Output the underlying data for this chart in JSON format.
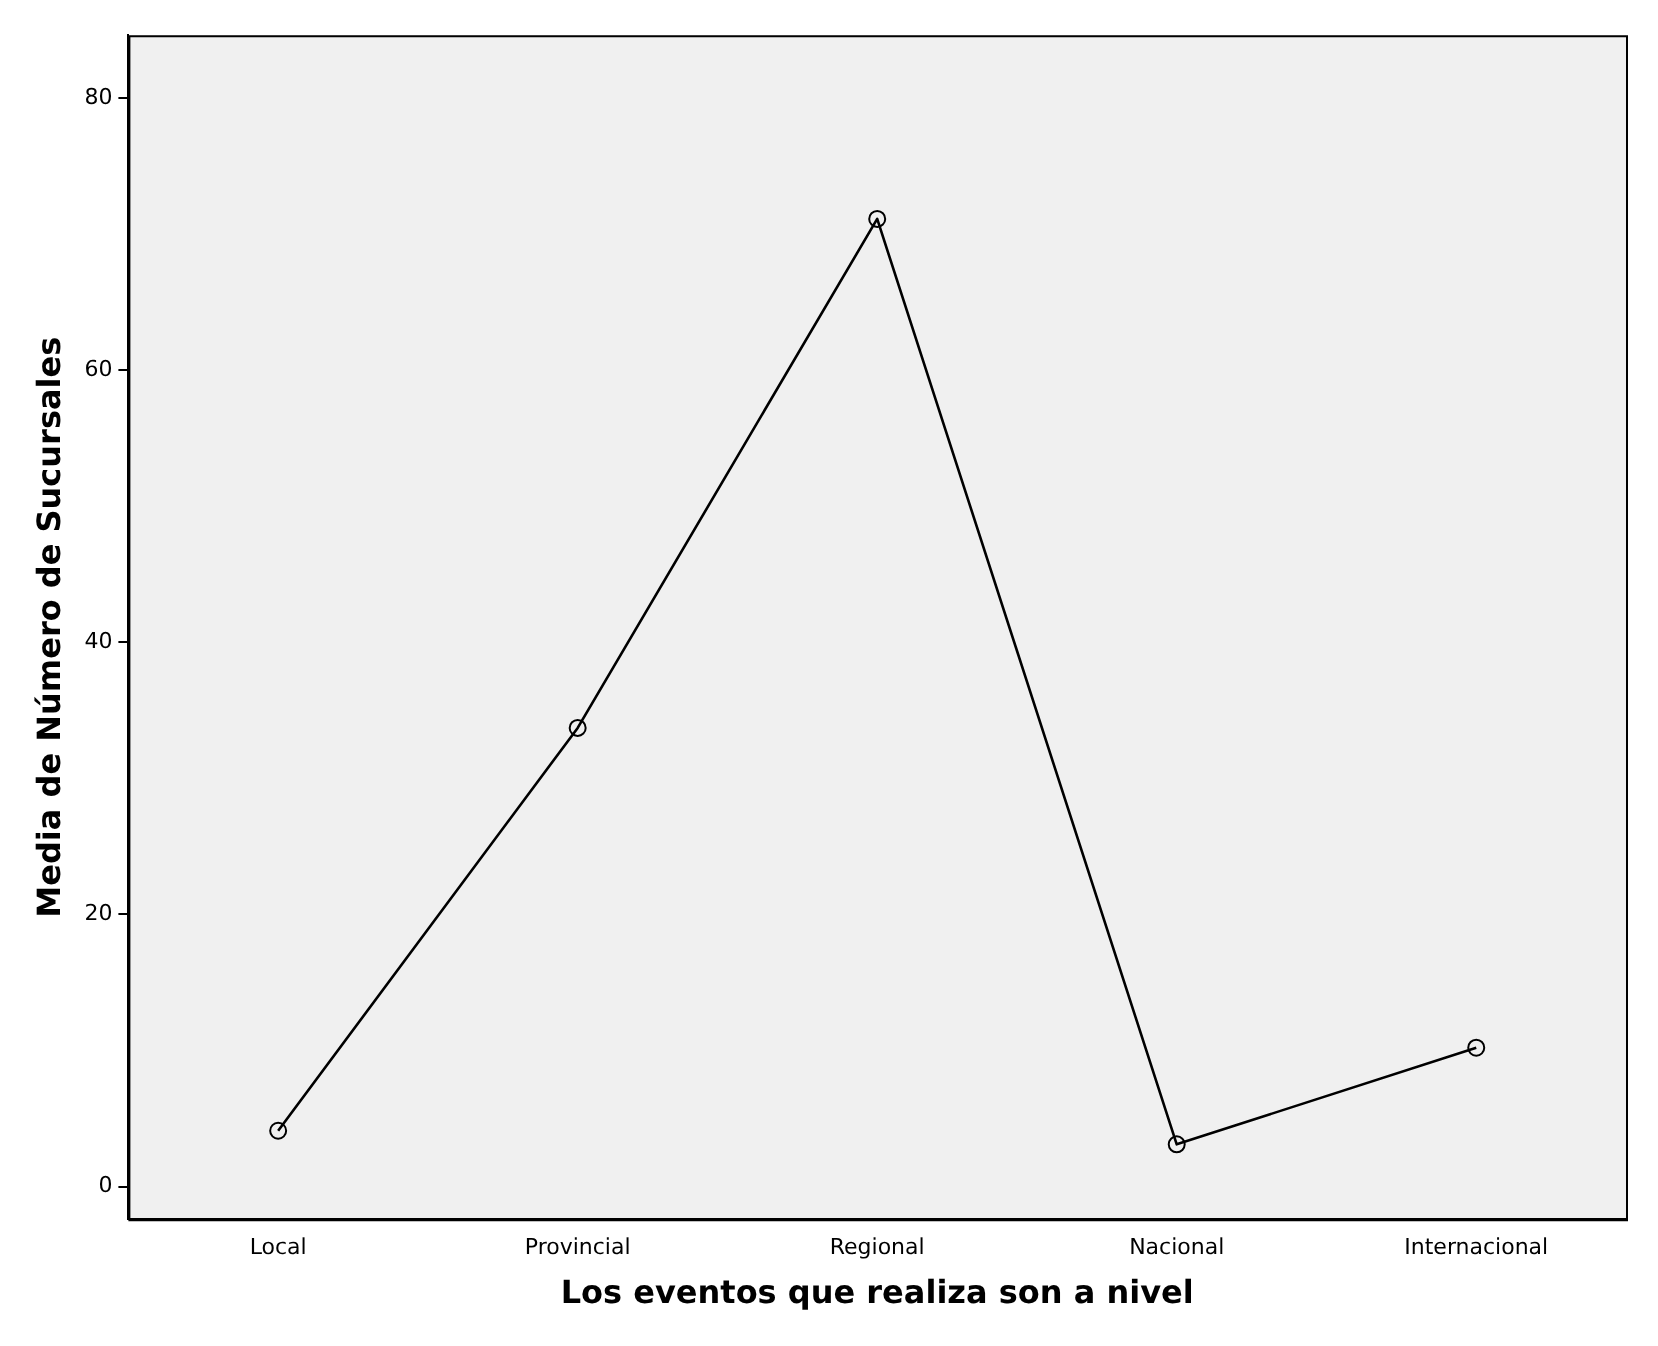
{
  "chart_data": {
    "type": "line",
    "xlabel": "Los eventos que realiza son a nivel",
    "ylabel": "Media de Número de Sucursales",
    "categories": [
      "Local",
      "Provincial",
      "Regional",
      "Nacional",
      "Internacional"
    ],
    "series": [
      {
        "color": "#000000",
        "values": [
          4.1,
          33.7,
          71.1,
          3.1,
          10.2
        ]
      }
    ],
    "ylim": [
      -2.4,
      84.6
    ],
    "yticks": [
      0,
      20,
      40,
      60,
      80
    ],
    "grid": false,
    "legend": false,
    "marker": "circle",
    "line_style": "solid"
  }
}
